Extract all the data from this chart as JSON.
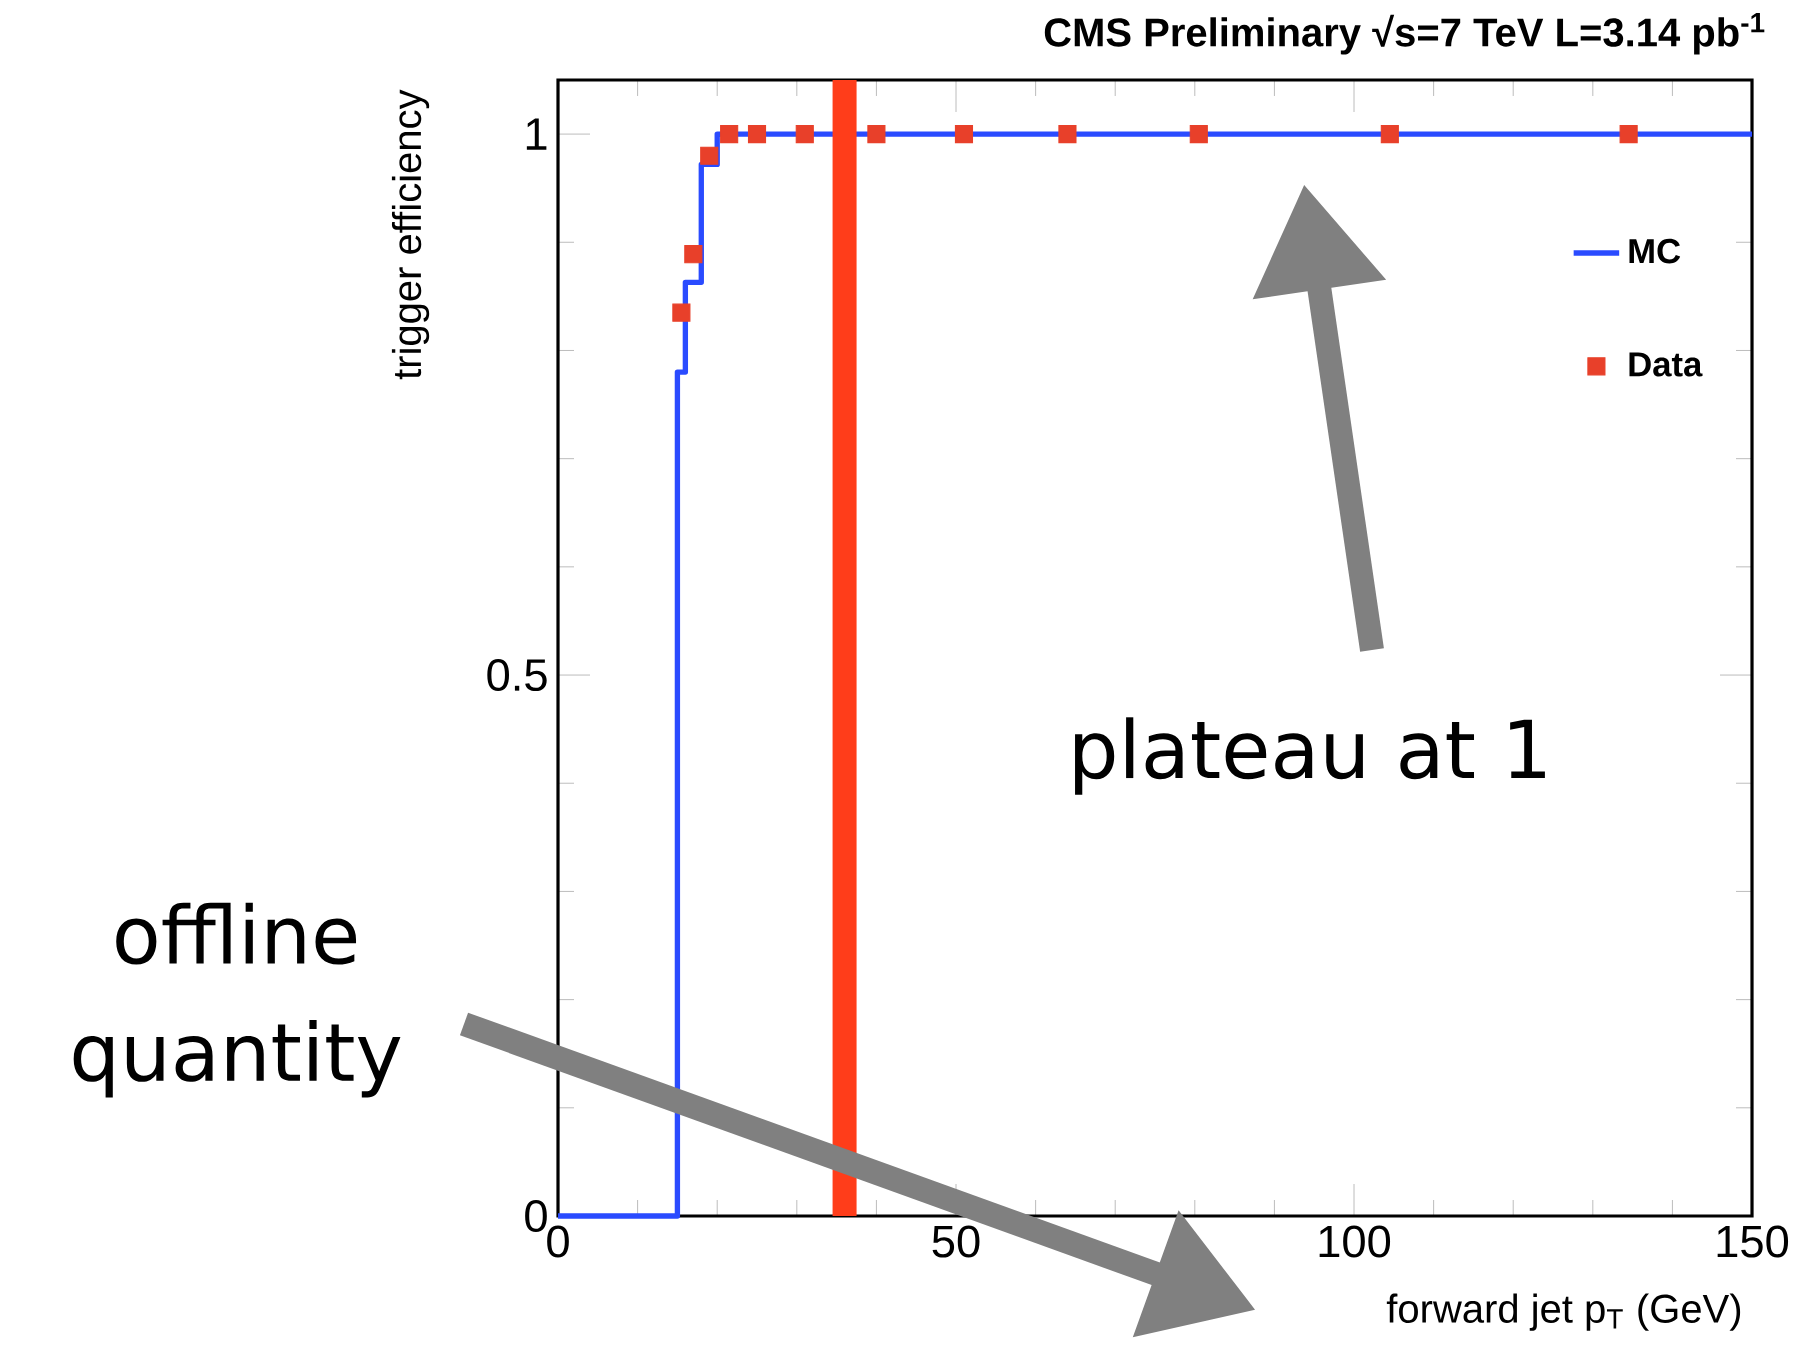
{
  "chart_data": {
    "type": "scatter",
    "title": "CMS Preliminary √s=7 TeV L=3.14 pb$^{-1}$",
    "xlabel": "forward jet p$_{T}$ (GeV)",
    "ylabel": "trigger efficiency",
    "annotations": [
      "plateau at 1",
      "offline quantity"
    ],
    "series": [
      {
        "name": "MC",
        "type": "step",
        "color": "#2a4bff",
        "marker": "none",
        "x": [
          0,
          15,
          16,
          18,
          20,
          150
        ],
        "values": [
          0,
          0.78,
          0.863,
          0.972,
          1,
          1
        ]
      },
      {
        "name": "Data",
        "color": "#e8402a",
        "marker": "square",
        "x": [
          15.5,
          17,
          19,
          21.5,
          25,
          31,
          40,
          51,
          64,
          80.5,
          104.5,
          134.5
        ],
        "values": [
          0.835,
          0.889,
          0.98,
          1,
          1,
          1,
          1,
          1,
          1,
          1,
          1,
          1
        ]
      }
    ],
    "xlim": [
      0,
      150
    ],
    "ylim": [
      0,
      1.05
    ],
    "xticks": [
      0,
      50,
      100,
      150
    ],
    "yticks": [
      0,
      0.5,
      1
    ],
    "legend": "top right",
    "ref_lines": [
      {
        "axis": "x",
        "value": 36,
        "color": "#ff3d1a"
      }
    ]
  }
}
